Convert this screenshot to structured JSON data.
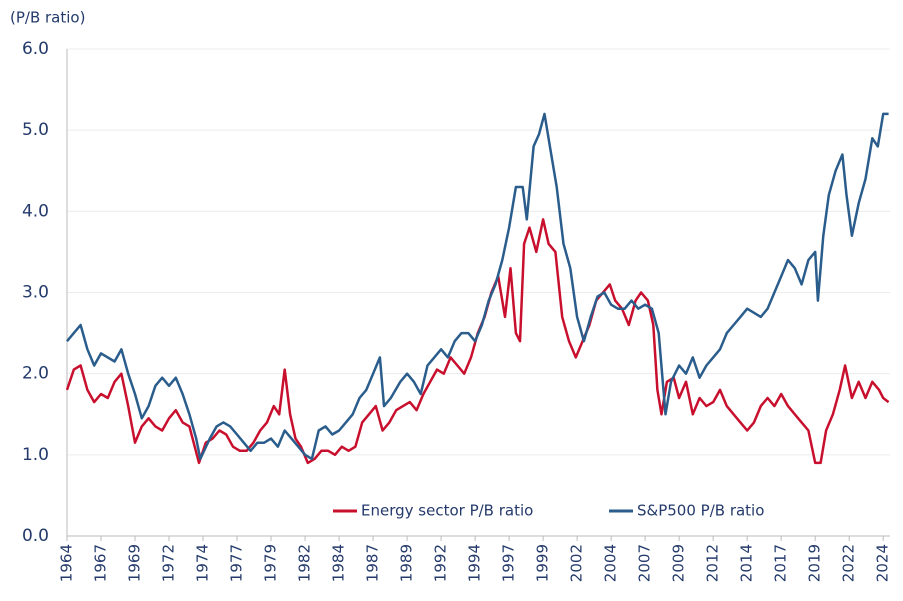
{
  "chart_data": {
    "type": "line",
    "y_label": "(P/B ratio)",
    "ylim": [
      0,
      6
    ],
    "yticks": [
      {
        "value": 0,
        "label": "0.0"
      },
      {
        "value": 1,
        "label": "1.0"
      },
      {
        "value": 2,
        "label": "2.0"
      },
      {
        "value": 3,
        "label": "3.0"
      },
      {
        "value": 4,
        "label": "4.0"
      },
      {
        "value": 5,
        "label": "5.0"
      },
      {
        "value": 6,
        "label": "6.0"
      }
    ],
    "xlim": [
      1964,
      2024.5
    ],
    "xticks": [
      1964,
      {
        "value": 1966.5,
        "label": "1967"
      },
      1969,
      {
        "value": 1971.5,
        "label": "1972"
      },
      1974,
      {
        "value": 1976.5,
        "label": "1977"
      },
      1979,
      {
        "value": 1981.5,
        "label": "1982"
      },
      1984,
      {
        "value": 1986.5,
        "label": "1987"
      },
      1989,
      {
        "value": 1991.5,
        "label": "1992"
      },
      1994,
      {
        "value": 1996.5,
        "label": "1997"
      },
      1999,
      {
        "value": 2001.5,
        "label": "2002"
      },
      2004,
      {
        "value": 2006.5,
        "label": "2007"
      },
      2009,
      {
        "value": 2011.5,
        "label": "2012"
      },
      2014,
      {
        "value": 2016.5,
        "label": "2017"
      },
      2019,
      {
        "value": 2021.5,
        "label": "2022"
      },
      2024
    ],
    "grid": true,
    "legend": "bottom",
    "series": [
      {
        "name": "Energy sector P/B ratio",
        "color": "#c8102e",
        "x": [
          1964,
          1964.5,
          1965,
          1965.5,
          1966,
          1966.5,
          1967,
          1967.5,
          1968,
          1968.5,
          1969,
          1969.5,
          1970,
          1970.5,
          1971,
          1971.5,
          1972,
          1972.5,
          1973,
          1973.7,
          1974.2,
          1974.7,
          1975.2,
          1975.7,
          1976.2,
          1976.7,
          1977.2,
          1977.7,
          1978.2,
          1978.7,
          1979.2,
          1979.6,
          1980,
          1980.4,
          1980.8,
          1981.2,
          1981.7,
          1982.2,
          1982.7,
          1983.2,
          1983.7,
          1984.2,
          1984.7,
          1985.2,
          1985.7,
          1986.2,
          1986.7,
          1987.2,
          1987.7,
          1988.2,
          1988.7,
          1989.2,
          1989.7,
          1990.2,
          1990.7,
          1991.2,
          1991.7,
          1992.2,
          1992.7,
          1993.2,
          1993.7,
          1994.2,
          1994.7,
          1995.2,
          1995.7,
          1996.2,
          1996.6,
          1997,
          1997.3,
          1997.6,
          1998,
          1998.5,
          1999,
          1999.4,
          1999.9,
          2000.4,
          2000.9,
          2001.4,
          2001.9,
          2002.4,
          2002.9,
          2003.4,
          2003.9,
          2004.3,
          2004.8,
          2005.3,
          2005.8,
          2006.2,
          2006.7,
          2007.1,
          2007.4,
          2007.7,
          2008.1,
          2008.6,
          2009,
          2009.5,
          2010,
          2010.5,
          2011,
          2011.5,
          2012,
          2012.5,
          2013,
          2013.5,
          2014,
          2014.5,
          2015,
          2015.5,
          2016,
          2016.5,
          2017,
          2017.5,
          2018,
          2018.5,
          2019,
          2019.4,
          2019.8,
          2020.3,
          2020.8,
          2021.2,
          2021.7,
          2022.2,
          2022.7,
          2023.2,
          2023.7,
          2024,
          2024.4
        ],
        "values": [
          1.8,
          2.05,
          2.1,
          1.8,
          1.65,
          1.75,
          1.7,
          1.9,
          2.0,
          1.6,
          1.15,
          1.35,
          1.45,
          1.35,
          1.3,
          1.45,
          1.55,
          1.4,
          1.35,
          0.9,
          1.15,
          1.2,
          1.3,
          1.25,
          1.1,
          1.05,
          1.05,
          1.15,
          1.3,
          1.4,
          1.6,
          1.5,
          2.05,
          1.5,
          1.2,
          1.1,
          0.9,
          0.95,
          1.05,
          1.05,
          1.0,
          1.1,
          1.05,
          1.1,
          1.4,
          1.5,
          1.6,
          1.3,
          1.4,
          1.55,
          1.6,
          1.65,
          1.55,
          1.75,
          1.9,
          2.05,
          2.0,
          2.2,
          2.1,
          2.0,
          2.2,
          2.5,
          2.7,
          3.0,
          3.2,
          2.7,
          3.3,
          2.5,
          2.4,
          3.6,
          3.8,
          3.5,
          3.9,
          3.6,
          3.5,
          2.7,
          2.4,
          2.2,
          2.4,
          2.6,
          2.9,
          3.0,
          3.1,
          2.9,
          2.8,
          2.6,
          2.9,
          3.0,
          2.9,
          2.6,
          1.8,
          1.5,
          1.9,
          1.95,
          1.7,
          1.9,
          1.5,
          1.7,
          1.6,
          1.65,
          1.8,
          1.6,
          1.5,
          1.4,
          1.3,
          1.4,
          1.6,
          1.7,
          1.6,
          1.75,
          1.6,
          1.5,
          1.4,
          1.3,
          0.9,
          0.9,
          1.3,
          1.5,
          1.8,
          2.1,
          1.7,
          1.9,
          1.7,
          1.9,
          1.8,
          1.7,
          1.65
        ]
      },
      {
        "name": "S&P500 P/B ratio",
        "color": "#2a5d8c",
        "x": [
          1964,
          1964.5,
          1965,
          1965.5,
          1966,
          1966.5,
          1967,
          1967.5,
          1968,
          1968.5,
          1969,
          1969.5,
          1970,
          1970.5,
          1971,
          1971.5,
          1972,
          1972.5,
          1973,
          1973.5,
          1973.8,
          1974.5,
          1975,
          1975.5,
          1976,
          1976.5,
          1977,
          1977.5,
          1978,
          1978.5,
          1979,
          1979.5,
          1980,
          1980.5,
          1981,
          1981.5,
          1982,
          1982.5,
          1983,
          1983.5,
          1984,
          1984.5,
          1985,
          1985.5,
          1986,
          1986.5,
          1987,
          1987.3,
          1987.8,
          1988.5,
          1989,
          1989.5,
          1990,
          1990.5,
          1991,
          1991.5,
          1992,
          1992.5,
          1993,
          1993.5,
          1994,
          1994.5,
          1995,
          1995.5,
          1996,
          1996.5,
          1997,
          1997.5,
          1997.8,
          1998.3,
          1998.7,
          1999.1,
          1999.5,
          2000,
          2000.5,
          2001,
          2001.5,
          2002,
          2002.5,
          2003,
          2003.5,
          2004,
          2004.5,
          2005,
          2005.5,
          2006,
          2006.5,
          2007,
          2007.5,
          2008,
          2008.4,
          2009,
          2009.5,
          2010,
          2010.5,
          2011,
          2011.5,
          2012,
          2012.5,
          2013,
          2013.5,
          2014,
          2014.5,
          2015,
          2015.5,
          2016,
          2016.5,
          2017,
          2017.5,
          2018,
          2018.5,
          2019,
          2019.2,
          2019.6,
          2020,
          2020.5,
          2021,
          2021.3,
          2021.7,
          2022.2,
          2022.7,
          2023.2,
          2023.6,
          2024,
          2024.4
        ],
        "values": [
          2.4,
          2.5,
          2.6,
          2.3,
          2.1,
          2.25,
          2.2,
          2.15,
          2.3,
          2.0,
          1.75,
          1.45,
          1.6,
          1.85,
          1.95,
          1.85,
          1.95,
          1.75,
          1.5,
          1.2,
          0.95,
          1.2,
          1.35,
          1.4,
          1.35,
          1.25,
          1.15,
          1.05,
          1.15,
          1.15,
          1.2,
          1.1,
          1.3,
          1.2,
          1.1,
          1.0,
          0.95,
          1.3,
          1.35,
          1.25,
          1.3,
          1.4,
          1.5,
          1.7,
          1.8,
          2.0,
          2.2,
          1.6,
          1.7,
          1.9,
          2.0,
          1.9,
          1.75,
          2.1,
          2.2,
          2.3,
          2.2,
          2.4,
          2.5,
          2.5,
          2.4,
          2.6,
          2.9,
          3.1,
          3.4,
          3.8,
          4.3,
          4.3,
          3.9,
          4.8,
          4.95,
          5.2,
          4.8,
          4.3,
          3.6,
          3.3,
          2.7,
          2.4,
          2.7,
          2.95,
          3.0,
          2.85,
          2.8,
          2.8,
          2.9,
          2.8,
          2.85,
          2.8,
          2.5,
          1.5,
          1.9,
          2.1,
          2.0,
          2.2,
          1.95,
          2.1,
          2.2,
          2.3,
          2.5,
          2.6,
          2.7,
          2.8,
          2.75,
          2.7,
          2.8,
          3.0,
          3.2,
          3.4,
          3.3,
          3.1,
          3.4,
          3.5,
          2.9,
          3.7,
          4.2,
          4.5,
          4.7,
          4.2,
          3.7,
          4.1,
          4.4,
          4.9,
          4.8,
          5.2,
          5.2
        ]
      }
    ]
  }
}
